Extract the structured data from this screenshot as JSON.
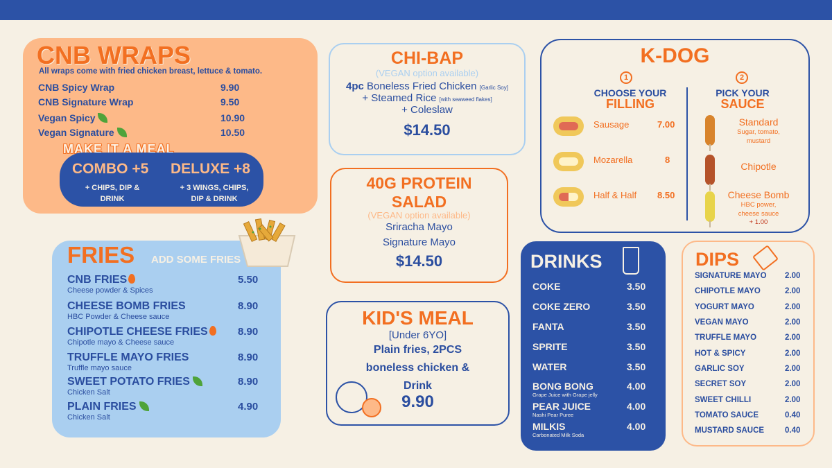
{
  "wraps": {
    "title": "CNB WRAPS",
    "subtitle": "All wraps come with fried chicken breast, lettuce & tomato.",
    "items": [
      {
        "name": "CNB Spicy Wrap",
        "price": "9.90",
        "vegan": false
      },
      {
        "name": "CNB Signature Wrap",
        "price": "9.50",
        "vegan": false
      },
      {
        "name": "Vegan Spicy",
        "price": "10.90",
        "vegan": true
      },
      {
        "name": "Vegan Signature",
        "price": "10.50",
        "vegan": true
      }
    ],
    "meal_label": "MAKE IT A MEAL",
    "combo": {
      "title": "COMBO +5",
      "desc1": "+ CHIPS, DIP &",
      "desc2": "DRINK"
    },
    "deluxe": {
      "title": "DELUXE +8",
      "desc1": "+ 3 WINGS, CHIPS,",
      "desc2": "DIP & DRINK"
    }
  },
  "fries": {
    "title": "FRIES",
    "subtitle": "ADD SOME FRIES",
    "items": [
      {
        "name": "CNB FRIES",
        "desc": "Cheese powder & Spices",
        "price": "5.50"
      },
      {
        "name": "CHEESE BOMB FRIES",
        "desc": "HBC Powder & Cheese sauce",
        "price": "8.90"
      },
      {
        "name": "CHIPOTLE CHEESE FRIES",
        "desc": "Chipotle mayo & Cheese sauce",
        "price": "8.90"
      },
      {
        "name": "TRUFFLE MAYO FRIES",
        "desc": "Truffle mayo sauce",
        "price": "8.90"
      },
      {
        "name": "SWEET POTATO FRIES",
        "desc": "Chicken Salt",
        "price": "8.90"
      },
      {
        "name": "PLAIN FRIES",
        "desc": "Chicken Salt",
        "price": "4.90"
      }
    ]
  },
  "chibap": {
    "title": "CHI-BAP",
    "vegan": "(VEGAN option available)",
    "line1_bold": "4pc",
    "line1": " Boneless Fried Chicken ",
    "line1_note": "[Garlic Soy]",
    "line2": "+ Steamed Rice ",
    "line2_note": "[with seaweed flakes]",
    "line3": "+ Coleslaw",
    "price": "$14.50"
  },
  "salad": {
    "title1": "40G PROTEIN",
    "title2": "SALAD",
    "vegan": "(VEGAN option available)",
    "line1": "Sriracha Mayo",
    "line2": "Signature Mayo",
    "price": "$14.50"
  },
  "kids": {
    "title": "KID'S MEAL",
    "age": "[Under 6YO]",
    "line1": "Plain fries, 2PCS",
    "line2": "boneless chicken &",
    "line3": "Drink",
    "price": "9.90"
  },
  "kdog": {
    "title": "K-DOG",
    "step1": {
      "num": "1",
      "h1": "CHOOSE YOUR",
      "h2": "FILLING"
    },
    "step2": {
      "num": "2",
      "h1": "PICK YOUR",
      "h2": "SAUCE"
    },
    "fillings": [
      {
        "name": "Sausage",
        "price": "7.00"
      },
      {
        "name": "Mozarella",
        "price": "8"
      },
      {
        "name": "Half & Half",
        "price": "8.50"
      }
    ],
    "sauces": [
      {
        "name": "Standard",
        "desc1": "Sugar, tomato,",
        "desc2": "mustard",
        "desc3": ""
      },
      {
        "name": "Chipotle",
        "desc1": "",
        "desc2": "",
        "desc3": ""
      },
      {
        "name": "Cheese Bomb",
        "desc1": "HBC power,",
        "desc2": "cheese sauce",
        "desc3": "+ 1.00"
      }
    ]
  },
  "drinks": {
    "title": "DRINKS",
    "items": [
      {
        "name": "COKE",
        "desc": "",
        "price": "3.50"
      },
      {
        "name": "COKE ZERO",
        "desc": "",
        "price": "3.50"
      },
      {
        "name": "FANTA",
        "desc": "",
        "price": "3.50"
      },
      {
        "name": "SPRITE",
        "desc": "",
        "price": "3.50"
      },
      {
        "name": "WATER",
        "desc": "",
        "price": "3.50"
      },
      {
        "name": "BONG BONG",
        "desc": "Grape Juice with Grape jelly",
        "price": "4.00"
      },
      {
        "name": "PEAR JUICE",
        "desc": "Nashi Pear Puree",
        "price": "4.00"
      },
      {
        "name": "MILKIS",
        "desc": "Carbonated Milk Soda",
        "price": "4.00"
      }
    ]
  },
  "dips": {
    "title": "DIPS",
    "items": [
      {
        "name": "SIGNATURE MAYO",
        "price": "2.00"
      },
      {
        "name": "CHIPOTLE MAYO",
        "price": "2.00"
      },
      {
        "name": "YOGURT MAYO",
        "price": "2.00"
      },
      {
        "name": "VEGAN MAYO",
        "price": "2.00"
      },
      {
        "name": "TRUFFLE MAYO",
        "price": "2.00"
      },
      {
        "name": "HOT & SPICY",
        "price": "2.00"
      },
      {
        "name": "GARLIC SOY",
        "price": "2.00"
      },
      {
        "name": "SECRET SOY",
        "price": "2.00"
      },
      {
        "name": "SWEET CHILLI",
        "price": "2.00"
      },
      {
        "name": "TOMATO SAUCE",
        "price": "0.40"
      },
      {
        "name": "MUSTARD SAUCE",
        "price": "0.40"
      }
    ]
  }
}
